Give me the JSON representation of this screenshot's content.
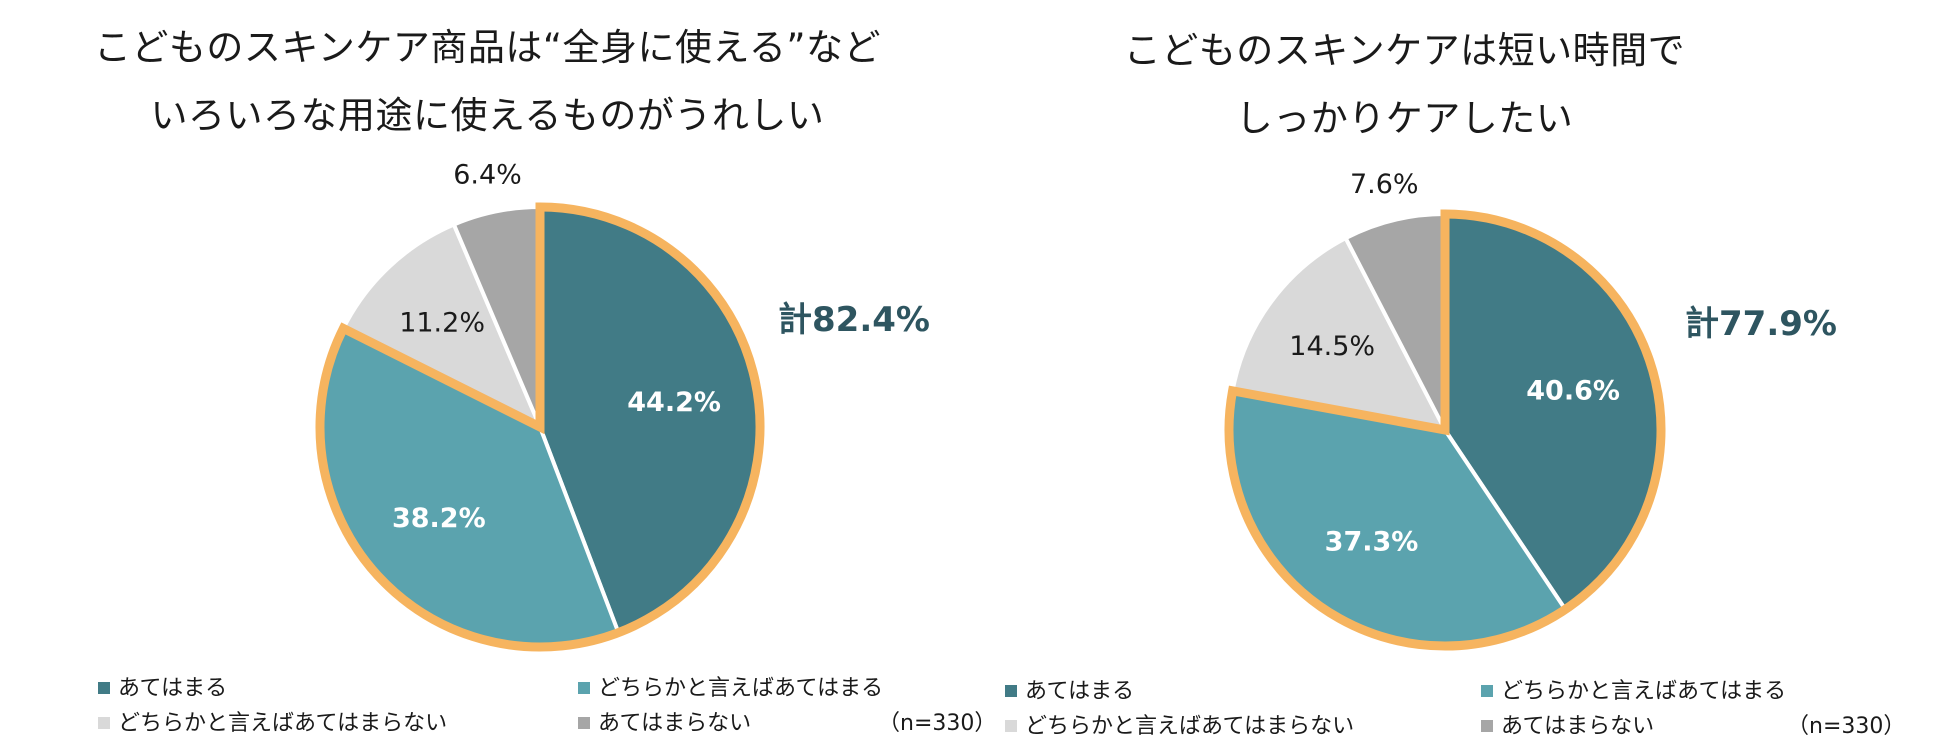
{
  "legend_labels": [
    "あてはまる",
    "どちらかと言えばあてはまる",
    "どちらかと言えばあてはまらない",
    "あてはまらない"
  ],
  "colors": {
    "あてはまる": "#417b86",
    "どちらかと言えばあてはまる": "#5ba3ae",
    "どちらかと言えばあてはまらない": "#d9d9d9",
    "あてはまらない": "#a6a6a6",
    "highlight_outline": "#f6b45f",
    "total_text": "#2e5560"
  },
  "sample_note": "（n=330）",
  "chart_data": [
    {
      "type": "pie",
      "title": [
        "こどものスキンケア商品は“全身に使える”など",
        "いろいろな用途に使えるものがうれしい"
      ],
      "labels": [
        "あてはまる",
        "どちらかと言えばあてはまる",
        "どちらかと言えばあてはまらない",
        "あてはまらない"
      ],
      "values": [
        44.2,
        38.2,
        11.2,
        6.4
      ],
      "value_labels": [
        "44.2%",
        "38.2%",
        "11.2%",
        "6.4%"
      ],
      "highlighted": [
        0,
        1
      ],
      "total_label": "計82.4%",
      "legend_position": "bottom",
      "n_note": "（n=330）"
    },
    {
      "type": "pie",
      "title": [
        "こどものスキンケアは短い時間で",
        "しっかりケアしたい"
      ],
      "labels": [
        "あてはまる",
        "どちらかと言えばあてはまる",
        "どちらかと言えばあてはまらない",
        "あてはまらない"
      ],
      "values": [
        40.6,
        37.3,
        14.5,
        7.6
      ],
      "value_labels": [
        "40.6%",
        "37.3%",
        "14.5%",
        "7.6%"
      ],
      "highlighted": [
        0,
        1
      ],
      "total_label": "計77.9%",
      "legend_position": "bottom",
      "n_note": "（n=330）"
    }
  ]
}
